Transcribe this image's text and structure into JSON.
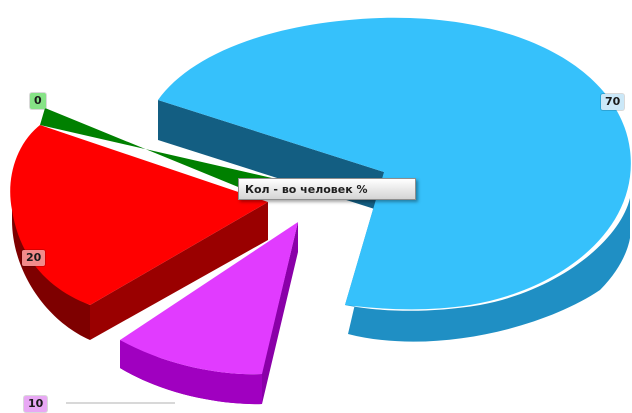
{
  "chart_data": {
    "type": "pie",
    "title": "Кол - во человек %",
    "slices": [
      {
        "label": "70",
        "value": 70,
        "color": "#36c1fb",
        "side": "#1f8fc4"
      },
      {
        "label": "10",
        "value": 10,
        "color": "#e13bff",
        "side": "#8a00a8"
      },
      {
        "label": "20",
        "value": 20,
        "color": "#ff0000",
        "side": "#7e0000"
      },
      {
        "label": "0",
        "value": 0,
        "color": "#008000",
        "side": "#004d00"
      }
    ],
    "label_colors": {
      "70": "#cbe8f8",
      "10": "#e8a8f4",
      "20": "#f28a8a",
      "0": "#86e386"
    }
  }
}
